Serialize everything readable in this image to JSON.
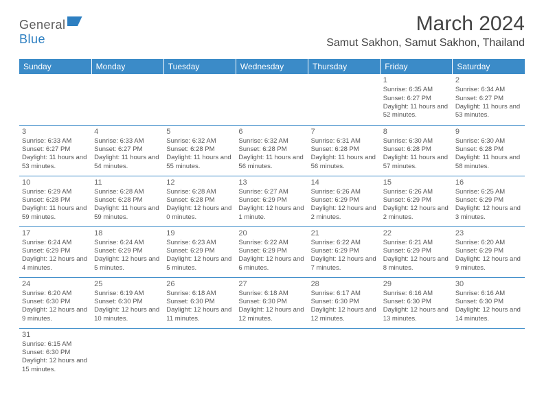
{
  "brand": {
    "name_part1": "General",
    "name_part2": "Blue"
  },
  "title": "March 2024",
  "location": "Samut Sakhon, Samut Sakhon, Thailand",
  "colors": {
    "header_bg": "#3b8bc8",
    "header_text": "#ffffff",
    "cell_border": "#3b8bc8",
    "text": "#555555",
    "title_text": "#444444",
    "brand_gray": "#5a5a5a",
    "brand_blue": "#2d7fc1"
  },
  "day_headers": [
    "Sunday",
    "Monday",
    "Tuesday",
    "Wednesday",
    "Thursday",
    "Friday",
    "Saturday"
  ],
  "weeks": [
    [
      null,
      null,
      null,
      null,
      null,
      {
        "n": "1",
        "sr": "6:35 AM",
        "ss": "6:27 PM",
        "dl": "11 hours and 52 minutes."
      },
      {
        "n": "2",
        "sr": "6:34 AM",
        "ss": "6:27 PM",
        "dl": "11 hours and 53 minutes."
      }
    ],
    [
      {
        "n": "3",
        "sr": "6:33 AM",
        "ss": "6:27 PM",
        "dl": "11 hours and 53 minutes."
      },
      {
        "n": "4",
        "sr": "6:33 AM",
        "ss": "6:27 PM",
        "dl": "11 hours and 54 minutes."
      },
      {
        "n": "5",
        "sr": "6:32 AM",
        "ss": "6:28 PM",
        "dl": "11 hours and 55 minutes."
      },
      {
        "n": "6",
        "sr": "6:32 AM",
        "ss": "6:28 PM",
        "dl": "11 hours and 56 minutes."
      },
      {
        "n": "7",
        "sr": "6:31 AM",
        "ss": "6:28 PM",
        "dl": "11 hours and 56 minutes."
      },
      {
        "n": "8",
        "sr": "6:30 AM",
        "ss": "6:28 PM",
        "dl": "11 hours and 57 minutes."
      },
      {
        "n": "9",
        "sr": "6:30 AM",
        "ss": "6:28 PM",
        "dl": "11 hours and 58 minutes."
      }
    ],
    [
      {
        "n": "10",
        "sr": "6:29 AM",
        "ss": "6:28 PM",
        "dl": "11 hours and 59 minutes."
      },
      {
        "n": "11",
        "sr": "6:28 AM",
        "ss": "6:28 PM",
        "dl": "11 hours and 59 minutes."
      },
      {
        "n": "12",
        "sr": "6:28 AM",
        "ss": "6:28 PM",
        "dl": "12 hours and 0 minutes."
      },
      {
        "n": "13",
        "sr": "6:27 AM",
        "ss": "6:29 PM",
        "dl": "12 hours and 1 minute."
      },
      {
        "n": "14",
        "sr": "6:26 AM",
        "ss": "6:29 PM",
        "dl": "12 hours and 2 minutes."
      },
      {
        "n": "15",
        "sr": "6:26 AM",
        "ss": "6:29 PM",
        "dl": "12 hours and 2 minutes."
      },
      {
        "n": "16",
        "sr": "6:25 AM",
        "ss": "6:29 PM",
        "dl": "12 hours and 3 minutes."
      }
    ],
    [
      {
        "n": "17",
        "sr": "6:24 AM",
        "ss": "6:29 PM",
        "dl": "12 hours and 4 minutes."
      },
      {
        "n": "18",
        "sr": "6:24 AM",
        "ss": "6:29 PM",
        "dl": "12 hours and 5 minutes."
      },
      {
        "n": "19",
        "sr": "6:23 AM",
        "ss": "6:29 PM",
        "dl": "12 hours and 5 minutes."
      },
      {
        "n": "20",
        "sr": "6:22 AM",
        "ss": "6:29 PM",
        "dl": "12 hours and 6 minutes."
      },
      {
        "n": "21",
        "sr": "6:22 AM",
        "ss": "6:29 PM",
        "dl": "12 hours and 7 minutes."
      },
      {
        "n": "22",
        "sr": "6:21 AM",
        "ss": "6:29 PM",
        "dl": "12 hours and 8 minutes."
      },
      {
        "n": "23",
        "sr": "6:20 AM",
        "ss": "6:29 PM",
        "dl": "12 hours and 9 minutes."
      }
    ],
    [
      {
        "n": "24",
        "sr": "6:20 AM",
        "ss": "6:30 PM",
        "dl": "12 hours and 9 minutes."
      },
      {
        "n": "25",
        "sr": "6:19 AM",
        "ss": "6:30 PM",
        "dl": "12 hours and 10 minutes."
      },
      {
        "n": "26",
        "sr": "6:18 AM",
        "ss": "6:30 PM",
        "dl": "12 hours and 11 minutes."
      },
      {
        "n": "27",
        "sr": "6:18 AM",
        "ss": "6:30 PM",
        "dl": "12 hours and 12 minutes."
      },
      {
        "n": "28",
        "sr": "6:17 AM",
        "ss": "6:30 PM",
        "dl": "12 hours and 12 minutes."
      },
      {
        "n": "29",
        "sr": "6:16 AM",
        "ss": "6:30 PM",
        "dl": "12 hours and 13 minutes."
      },
      {
        "n": "30",
        "sr": "6:16 AM",
        "ss": "6:30 PM",
        "dl": "12 hours and 14 minutes."
      }
    ],
    [
      {
        "n": "31",
        "sr": "6:15 AM",
        "ss": "6:30 PM",
        "dl": "12 hours and 15 minutes."
      },
      null,
      null,
      null,
      null,
      null,
      null
    ]
  ],
  "labels": {
    "sunrise": "Sunrise:",
    "sunset": "Sunset:",
    "daylight": "Daylight:"
  }
}
